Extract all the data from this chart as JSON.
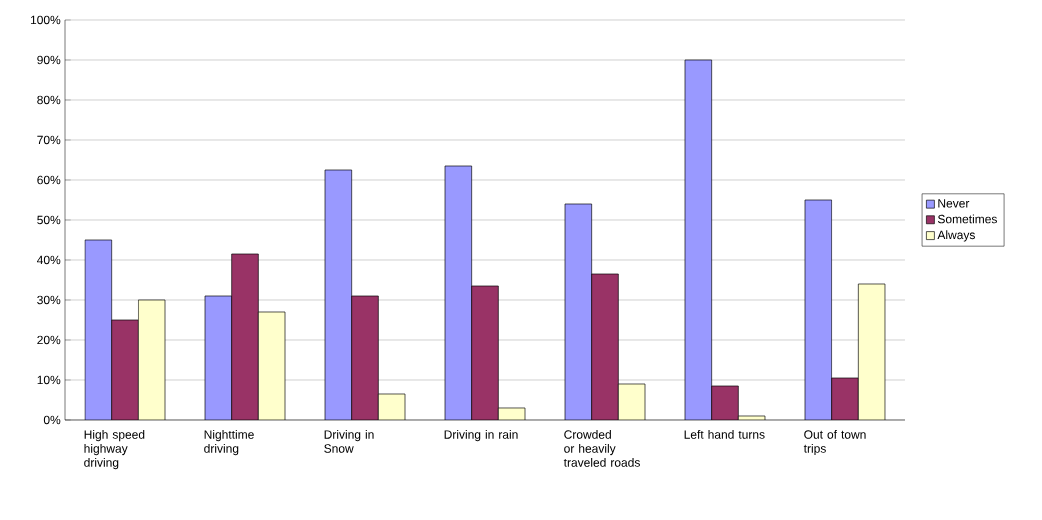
{
  "chart_data": {
    "type": "bar",
    "categories": [
      "High speed highway driving",
      "Nighttime driving",
      "Driving in Snow",
      "Driving in rain",
      "Crowded or heavily traveled roads",
      "Left hand turns",
      "Out of town trips"
    ],
    "series": [
      {
        "name": "Never",
        "color": "#9999ff",
        "values": [
          45,
          31,
          62.5,
          63.5,
          54,
          90,
          55
        ]
      },
      {
        "name": "Sometimes",
        "color": "#993366",
        "values": [
          25,
          41.5,
          31,
          33.5,
          36.5,
          8.5,
          10.5
        ]
      },
      {
        "name": "Always",
        "color": "#ffffcc",
        "values": [
          30,
          27,
          6.5,
          3,
          9,
          1,
          34
        ]
      }
    ],
    "ylim": [
      0,
      100
    ],
    "yticks": [
      {
        "value": 0,
        "label": "0%"
      },
      {
        "value": 10,
        "label": "10%"
      },
      {
        "value": 20,
        "label": "20%"
      },
      {
        "value": 30,
        "label": "30%"
      },
      {
        "value": 40,
        "label": "40%"
      },
      {
        "value": 50,
        "label": "50%"
      },
      {
        "value": 60,
        "label": "60%"
      },
      {
        "value": 70,
        "label": "70%"
      },
      {
        "value": 80,
        "label": "80%"
      },
      {
        "value": 90,
        "label": "90%"
      },
      {
        "value": 100,
        "label": "100%"
      }
    ],
    "grid": "y",
    "legend": "right"
  }
}
